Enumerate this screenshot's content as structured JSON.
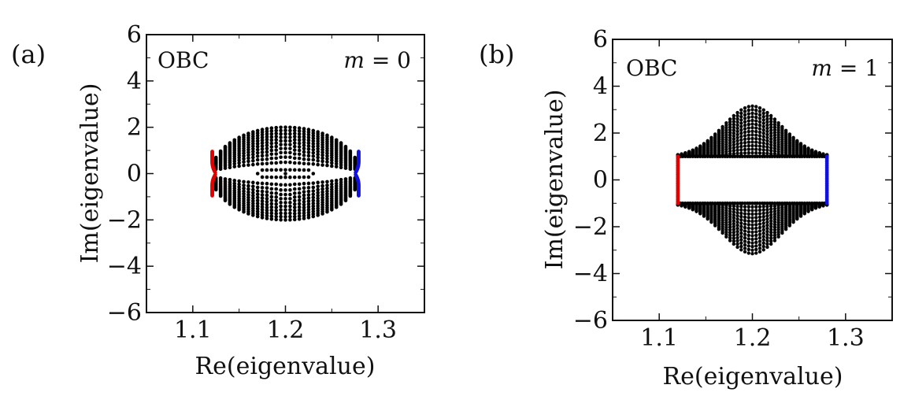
{
  "chart_data": [
    {
      "type": "scatter",
      "panel_label": "(a)",
      "title": "",
      "xlabel": "Re(eigenvalue)",
      "ylabel": "Im(eigenvalue)",
      "xlim": [
        1.05,
        1.35
      ],
      "ylim": [
        -6,
        6
      ],
      "xticks": [
        "1.1",
        "1.2",
        "1.3"
      ],
      "yticks": [
        "−6",
        "−4",
        "−2",
        "0",
        "2",
        "4",
        "6"
      ],
      "annotation_left": "OBC",
      "annotation_right": "m = 0",
      "annotation_right_var": "m",
      "annotation_right_rest": " = 0",
      "bulk": {
        "center": [
          1.2,
          0.0
        ],
        "half_width": 0.08,
        "half_height": 2.0,
        "gap_center": 0.0,
        "color": "#000000"
      },
      "edge_left": {
        "x": 1.121,
        "y_ranges": [
          [
            0.05,
            0.95
          ],
          [
            -0.95,
            -0.05
          ]
        ],
        "color": "#e00000"
      },
      "edge_right": {
        "x": 1.279,
        "y_ranges": [
          [
            0.05,
            0.95
          ],
          [
            -0.95,
            -0.05
          ]
        ],
        "color": "#1010e0"
      }
    },
    {
      "type": "scatter",
      "panel_label": "(b)",
      "title": "",
      "xlabel": "Re(eigenvalue)",
      "ylabel": "Im(eigenvalue)",
      "xlim": [
        1.05,
        1.35
      ],
      "ylim": [
        -6,
        6
      ],
      "xticks": [
        "1.1",
        "1.2",
        "1.3"
      ],
      "yticks": [
        "−6",
        "−4",
        "−2",
        "0",
        "2",
        "4",
        "6"
      ],
      "annotation_left": "OBC",
      "annotation_right": "m = 1",
      "annotation_right_var": "m",
      "annotation_right_rest": " = 1",
      "bulk": {
        "center": [
          1.2,
          0.0
        ],
        "half_width": 0.08,
        "outer_height": 3.0,
        "inner_gap": 1.0,
        "color": "#000000"
      },
      "edge_left": {
        "x": 1.12,
        "y_ranges": [
          [
            -1.0,
            1.0
          ]
        ],
        "color": "#e00000"
      },
      "edge_right": {
        "x": 1.28,
        "y_ranges": [
          [
            -1.0,
            1.0
          ]
        ],
        "color": "#1010e0"
      }
    }
  ]
}
